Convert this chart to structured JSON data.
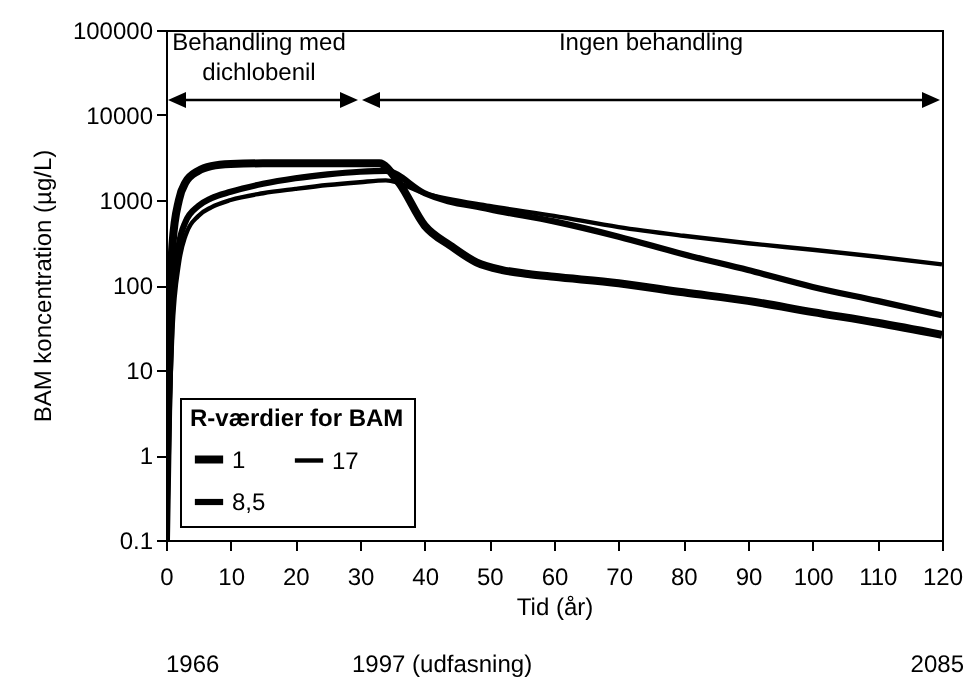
{
  "chart_data": {
    "type": "line",
    "xlabel": "Tid (år)",
    "ylabel": "BAM koncentration (µg/L)",
    "legend_title": "R-værdier for BAM",
    "xlim": [
      0,
      120
    ],
    "xticks": [
      0,
      10,
      20,
      30,
      40,
      50,
      60,
      70,
      80,
      90,
      100,
      110,
      120
    ],
    "ylim": [
      0.1,
      100000
    ],
    "yticks": [
      0.1,
      1,
      10,
      100,
      1000,
      10000,
      100000
    ],
    "log": "y",
    "annotations": [
      "Behandling med\ndichlobenil",
      "Ingen behandling",
      "1966",
      "1997 (udfasning)",
      "2085"
    ],
    "legend": "bottom left",
    "series": [
      {
        "name": "1",
        "color": "#000000",
        "x": [
          0,
          0.5,
          1,
          2,
          3,
          5,
          7,
          10,
          15,
          20,
          25,
          30,
          33,
          36,
          40,
          44,
          48,
          52,
          56,
          60,
          70,
          80,
          90,
          100,
          110,
          120
        ],
        "values": [
          0.1,
          20,
          300,
          1000,
          1600,
          2200,
          2500,
          2650,
          2700,
          2700,
          2700,
          2700,
          2700,
          1600,
          500,
          290,
          185,
          150,
          135,
          125,
          105,
          82,
          65,
          48,
          36,
          26
        ]
      },
      {
        "name": "8,5",
        "color": "#000000",
        "x": [
          0,
          0.5,
          1,
          2,
          3,
          5,
          7,
          10,
          15,
          20,
          25,
          30,
          34,
          40,
          50,
          60,
          70,
          80,
          90,
          100,
          110,
          120
        ],
        "values": [
          0.1,
          5,
          60,
          300,
          550,
          850,
          1050,
          1250,
          1550,
          1800,
          2000,
          2150,
          2200,
          1200,
          780,
          560,
          370,
          230,
          150,
          95,
          65,
          44
        ]
      },
      {
        "name": "17",
        "color": "#000000",
        "x": [
          0,
          0.5,
          1,
          2,
          3,
          5,
          7,
          10,
          15,
          20,
          25,
          30,
          34,
          40,
          50,
          60,
          70,
          80,
          90,
          100,
          110,
          120
        ],
        "values": [
          0.1,
          3,
          30,
          180,
          380,
          650,
          820,
          1000,
          1200,
          1350,
          1500,
          1620,
          1700,
          1200,
          850,
          650,
          480,
          380,
          310,
          260,
          215,
          175
        ]
      }
    ]
  }
}
